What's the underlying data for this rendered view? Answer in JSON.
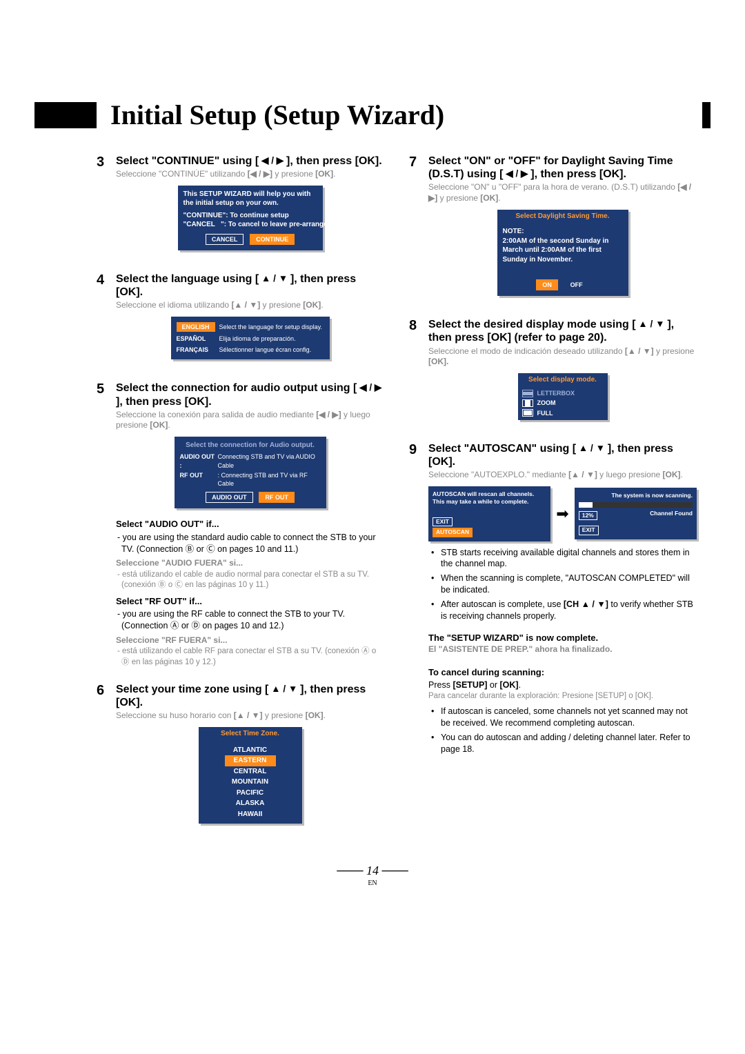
{
  "page_title": "Initial Setup (Setup Wizard)",
  "page_number": "14",
  "page_lang": "EN",
  "step3": {
    "num": "3",
    "head_a": "Select \"CONTINUE\" using [",
    "head_b": "], then press [OK].",
    "es_a": "Seleccione \"CONTINÚE\" utilizando ",
    "es_b": " y presione ",
    "es_ok": "[OK]",
    "osd_line1": "This SETUP WIZARD will help you with the initial setup on your own.",
    "osd_cont": "\"CONTINUE\": To continue setup",
    "osd_canc": "\"CANCEL   \": To cancel to leave pre-arranged setup",
    "btn_cancel": "CANCEL",
    "btn_continue": "CONTINUE"
  },
  "step4": {
    "num": "4",
    "head_a": "Select the language using [",
    "head_b": "], then press [OK].",
    "es_a": "Seleccione el idioma utilizando ",
    "es_b": " y presione ",
    "es_ok": "[OK]",
    "en_tag": "ENGLISH",
    "en_txt": "Select the language for setup display.",
    "sp_tag": "ESPAÑOL",
    "sp_txt": "Elija idioma de preparación.",
    "fr_tag": "FRANÇAIS",
    "fr_txt": "Sélectionner langue écran config."
  },
  "step5": {
    "num": "5",
    "head_a": "Select the connection for audio output using [",
    "head_b": "], then press [OK].",
    "es_a": "Seleccione la conexión para salida de audio mediante ",
    "es_b": " y luego presione ",
    "es_ok": "[OK]",
    "osd_title": "Select the connection for Audio output.",
    "aout_lbl": "AUDIO OUT :",
    "aout_txt": "Connecting STB and TV via AUDIO Cable",
    "rfout_lbl": "RF OUT",
    "rfout_txt": ": Connecting STB and TV via RF Cable",
    "btn_audio": "AUDIO OUT",
    "btn_rf": "RF OUT",
    "sub1_head": "Select \"AUDIO OUT\" if...",
    "sub1_body": "- you are using the standard audio cable to connect the STB to your TV. (Connection Ⓑ or Ⓒ on pages 10 and 11.)",
    "sub1_es_head": "Seleccione \"AUDIO FUERA\" si...",
    "sub1_es": "- está utilizando el cable de audio normal para conectar el STB a su TV. (conexión Ⓑ o Ⓒ en las páginas 10 y 11.)",
    "sub2_head": "Select \"RF OUT\" if...",
    "sub2_body": "- you are using the RF cable to connect the STB to your TV. (Connection Ⓐ or Ⓓ on pages 10 and 12.)",
    "sub2_es_head": "Seleccione \"RF FUERA\" si...",
    "sub2_es": "- está utilizando el cable RF para conectar el STB a su TV. (conexión Ⓐ o Ⓓ en las páginas 10 y 12.)"
  },
  "step6": {
    "num": "6",
    "head_a": "Select your time zone using [",
    "head_b": "], then press [OK].",
    "es_a": "Seleccione su huso horario con ",
    "es_b": " y presione ",
    "es_ok": "[OK]",
    "osd_title": "Select Time Zone.",
    "tz": [
      "ATLANTIC",
      "EASTERN",
      "CENTRAL",
      "MOUNTAIN",
      "PACIFIC",
      "ALASKA",
      "HAWAII"
    ],
    "active_index": 1
  },
  "step7": {
    "num": "7",
    "head_a": "Select \"ON\" or \"OFF\" for Daylight Saving Time (D.S.T) using [",
    "head_b": "], then press [OK].",
    "es_a": "Seleccione \"ON\" u \"OFF\" para la hora de verano. (D.S.T) utilizando ",
    "es_b": " y presione ",
    "es_ok": "[OK]",
    "osd_title": "Select Daylight Saving Time.",
    "note_head": "NOTE:",
    "note_body": "2:00AM of the second Sunday in March until 2:00AM of the first Sunday in November.",
    "btn_on": "ON",
    "btn_off": "OFF"
  },
  "step8": {
    "num": "8",
    "head_a": "Select the desired display mode using [",
    "head_b": "], then press [OK] (refer to page 20).",
    "es_a": "Seleccione el modo de indicación deseado utilizando ",
    "es_b": " y presione ",
    "es_ok": "[OK].",
    "osd_title": "Select display mode.",
    "m1": "LETTERBOX",
    "m2": "ZOOM",
    "m3": "FULL"
  },
  "step9": {
    "num": "9",
    "head_a": "Select \"AUTOSCAN\" using [",
    "head_b": "], then press [OK].",
    "es_a": "Seleccione \"AUTOEXPLO.\" mediante ",
    "es_b": " y luego presione ",
    "es_ok": "[OK]",
    "left_msg": "AUTOSCAN will rescan all channels. This may take a while to complete.",
    "btn_exit": "EXIT",
    "btn_auto": "AUTOSCAN",
    "right_title": "The system is now scanning.",
    "pct": "12%",
    "found": "Channel Found",
    "b1": "STB starts receiving available digital channels and stores them in the channel map.",
    "b2": "When the scanning is complete, \"AUTOSCAN COMPLETED\" will be indicated.",
    "b3_a": "After autoscan is complete, use ",
    "b3_ch": "[CH ▲ / ▼]",
    "b3_b": " to verify whether STB is receiving channels properly.",
    "done": "The \"SETUP WIZARD\" is now complete.",
    "done_es": "El \"ASISTENTE DE PREP.\" ahora ha finalizado."
  },
  "cancel": {
    "head": "To cancel during scanning:",
    "body_a": "Press ",
    "body_setup": "[SETUP]",
    "body_or": " or ",
    "body_ok": "[OK]",
    "body_end": ".",
    "es": "Para cancelar durante la exploración: Presione [SETUP] o [OK].",
    "b1": "If autoscan is canceled, some channels not yet scanned may not be received. We recommend completing autoscan.",
    "b2": "You can do autoscan and adding / deleting channel later. Refer to page 18."
  }
}
